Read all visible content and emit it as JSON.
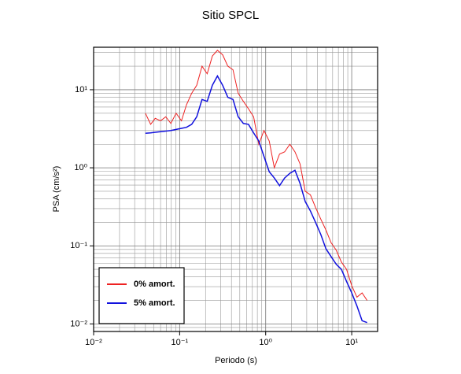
{
  "chart_data": {
    "type": "line",
    "title": "Sitio SPCL",
    "x_label": "Periodo (s)",
    "y_label": "PSA (cm/s²)",
    "log_x": true,
    "log_y": true,
    "grid": true,
    "legend_position": "lower left",
    "xlim": [
      0.01,
      20
    ],
    "ylim": [
      0.008,
      35
    ],
    "xticks": [
      {
        "value": 0.01,
        "label": "10⁻²"
      },
      {
        "value": 0.1,
        "label": "10⁻¹"
      },
      {
        "value": 1,
        "label": "10⁰"
      },
      {
        "value": 10,
        "label": "10¹"
      }
    ],
    "yticks": [
      {
        "value": 0.01,
        "label": "10⁻²"
      },
      {
        "value": 0.1,
        "label": "10⁻¹"
      },
      {
        "value": 1,
        "label": "10⁰"
      },
      {
        "value": 10,
        "label": "10¹"
      }
    ],
    "x": [
      0.04,
      0.046,
      0.052,
      0.06,
      0.069,
      0.079,
      0.091,
      0.105,
      0.12,
      0.138,
      0.158,
      0.182,
      0.209,
      0.24,
      0.275,
      0.316,
      0.363,
      0.417,
      0.479,
      0.55,
      0.631,
      0.724,
      0.832,
      0.955,
      1.1,
      1.26,
      1.45,
      1.66,
      1.91,
      2.19,
      2.51,
      2.88,
      3.31,
      3.8,
      4.37,
      5.01,
      5.75,
      6.61,
      7.59,
      8.71,
      10,
      11.5,
      13.2,
      15.1
    ],
    "series": [
      {
        "name": "0% amort.",
        "color": "#ee2222",
        "width": 1,
        "values": [
          5.0,
          3.6,
          4.3,
          4.0,
          4.5,
          3.7,
          5.0,
          4.0,
          6.4,
          9,
          11.4,
          20,
          16,
          27,
          32,
          28,
          20,
          18,
          9,
          7.1,
          5.7,
          4.5,
          2.0,
          3.0,
          2.2,
          1.0,
          1.5,
          1.6,
          2.0,
          1.6,
          1.12,
          0.5,
          0.45,
          0.31,
          0.22,
          0.16,
          0.11,
          0.088,
          0.062,
          0.05,
          0.031,
          0.022,
          0.025,
          0.02
        ]
      },
      {
        "name": "5% amort.",
        "color": "#1111dd",
        "width": 1.5,
        "values": [
          2.77,
          2.8,
          2.85,
          2.9,
          2.95,
          3.0,
          3.1,
          3.2,
          3.3,
          3.6,
          4.5,
          7.5,
          7.1,
          11.4,
          15,
          11.4,
          8,
          7.5,
          4.5,
          3.7,
          3.6,
          2.8,
          2.2,
          1.4,
          0.89,
          0.74,
          0.59,
          0.74,
          0.85,
          0.93,
          0.63,
          0.37,
          0.28,
          0.2,
          0.14,
          0.092,
          0.073,
          0.058,
          0.05,
          0.035,
          0.025,
          0.017,
          0.011,
          0.0104
        ]
      }
    ]
  }
}
